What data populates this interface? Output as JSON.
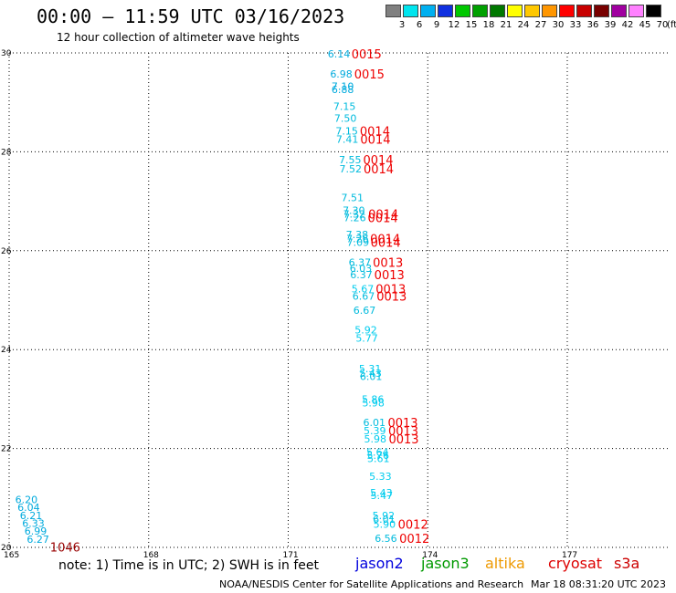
{
  "header": {
    "title": "00:00 – 11:59 UTC 03/16/2023",
    "subtitle": "12 hour collection of altimeter wave heights"
  },
  "colorbar": {
    "labels": [
      "3",
      "6",
      "9",
      "12",
      "15",
      "18",
      "21",
      "24",
      "27",
      "30",
      "33",
      "36",
      "39",
      "42",
      "45",
      "70"
    ],
    "unit": "(ft)",
    "colors": [
      "#808080",
      "#00e5ee",
      "#00b0f0",
      "#1030e0",
      "#00c800",
      "#00a000",
      "#007800",
      "#ffff00",
      "#ffc800",
      "#ff9600",
      "#ff0000",
      "#c80000",
      "#780000",
      "#a000a0",
      "#ff80ff",
      "#000000"
    ]
  },
  "map": {
    "lat_ticks": [
      "30",
      "28",
      "26",
      "24",
      "22",
      "20"
    ],
    "lon_ticks": [
      "165",
      "168",
      "171",
      "174",
      "177"
    ],
    "lat_range": [
      20,
      30
    ],
    "lon_range": [
      165,
      179.2
    ],
    "grid": "dotted",
    "swh_points": [
      {
        "lon": 171.85,
        "lat": 29.98,
        "label": "6.14",
        "color": "#00aadd"
      },
      {
        "lon": 171.9,
        "lat": 29.58,
        "label": "6.98",
        "color": "#00aadd"
      },
      {
        "lon": 171.93,
        "lat": 29.33,
        "label": "7.10",
        "color": "#00aadd"
      },
      {
        "lon": 171.93,
        "lat": 29.26,
        "label": "6.88",
        "color": "#00aadd"
      },
      {
        "lon": 171.97,
        "lat": 28.92,
        "label": "7.15",
        "color": "#00bbdd"
      },
      {
        "lon": 171.99,
        "lat": 28.68,
        "label": "7.50",
        "color": "#00bbdd"
      },
      {
        "lon": 172.02,
        "lat": 28.42,
        "label": "7.15",
        "color": "#00bbdd"
      },
      {
        "lon": 172.03,
        "lat": 28.26,
        "label": "7.41",
        "color": "#00bbdd"
      },
      {
        "lon": 172.09,
        "lat": 27.84,
        "label": "7.55",
        "color": "#00bbdd"
      },
      {
        "lon": 172.1,
        "lat": 27.66,
        "label": "7.52",
        "color": "#00bbdd"
      },
      {
        "lon": 172.14,
        "lat": 27.08,
        "label": "7.51",
        "color": "#00bbdd"
      },
      {
        "lon": 172.17,
        "lat": 26.82,
        "label": "7.30",
        "color": "#00bbdd"
      },
      {
        "lon": 172.18,
        "lat": 26.74,
        "label": "7.32",
        "color": "#00bbdd"
      },
      {
        "lon": 172.19,
        "lat": 26.67,
        "label": "7.26",
        "color": "#00bbdd"
      },
      {
        "lon": 172.24,
        "lat": 26.33,
        "label": "7.38",
        "color": "#00bbdd"
      },
      {
        "lon": 172.25,
        "lat": 26.25,
        "label": "7.26",
        "color": "#00bbdd"
      },
      {
        "lon": 172.26,
        "lat": 26.17,
        "label": "7.09",
        "color": "#00bbdd"
      },
      {
        "lon": 172.3,
        "lat": 25.77,
        "label": "6.37",
        "color": "#00bbdd"
      },
      {
        "lon": 172.32,
        "lat": 25.65,
        "label": "6.03",
        "color": "#00bbdd"
      },
      {
        "lon": 172.33,
        "lat": 25.52,
        "label": "6.37",
        "color": "#00bbdd"
      },
      {
        "lon": 172.36,
        "lat": 25.23,
        "label": "5.67",
        "color": "#00ccee"
      },
      {
        "lon": 172.38,
        "lat": 25.08,
        "label": "6.67",
        "color": "#00bbdd"
      },
      {
        "lon": 172.4,
        "lat": 24.8,
        "label": "6.67",
        "color": "#00bbdd"
      },
      {
        "lon": 172.43,
        "lat": 24.4,
        "label": "5.92",
        "color": "#00ccee"
      },
      {
        "lon": 172.45,
        "lat": 24.23,
        "label": "5.77",
        "color": "#00ccee"
      },
      {
        "lon": 172.52,
        "lat": 23.62,
        "label": "5.31",
        "color": "#00ccee"
      },
      {
        "lon": 172.53,
        "lat": 23.52,
        "label": "5.43",
        "color": "#00ccee"
      },
      {
        "lon": 172.54,
        "lat": 23.46,
        "label": "6.01",
        "color": "#00bbdd"
      },
      {
        "lon": 172.58,
        "lat": 23.0,
        "label": "5.86",
        "color": "#00ccee"
      },
      {
        "lon": 172.59,
        "lat": 22.92,
        "label": "5.98",
        "color": "#00ccee"
      },
      {
        "lon": 172.61,
        "lat": 22.53,
        "label": "6.01",
        "color": "#00bbdd"
      },
      {
        "lon": 172.62,
        "lat": 22.36,
        "label": "5.39",
        "color": "#00ccee"
      },
      {
        "lon": 172.63,
        "lat": 22.2,
        "label": "5.98",
        "color": "#00ccee"
      },
      {
        "lon": 172.68,
        "lat": 21.93,
        "label": "5.64",
        "color": "#00ccee"
      },
      {
        "lon": 172.69,
        "lat": 21.86,
        "label": "5.76",
        "color": "#00ccee"
      },
      {
        "lon": 172.7,
        "lat": 21.8,
        "label": "5.61",
        "color": "#00ccee"
      },
      {
        "lon": 172.74,
        "lat": 21.44,
        "label": "5.33",
        "color": "#00ccee"
      },
      {
        "lon": 172.76,
        "lat": 21.11,
        "label": "5.43",
        "color": "#00ccee"
      },
      {
        "lon": 172.77,
        "lat": 21.05,
        "label": "5.47",
        "color": "#00ccee"
      },
      {
        "lon": 172.81,
        "lat": 20.65,
        "label": "5.92",
        "color": "#00ccee"
      },
      {
        "lon": 172.82,
        "lat": 20.57,
        "label": "6.01",
        "color": "#00bbdd"
      },
      {
        "lon": 172.83,
        "lat": 20.47,
        "label": "5.90",
        "color": "#00ccee"
      },
      {
        "lon": 172.86,
        "lat": 20.18,
        "label": "6.56",
        "color": "#00bbdd"
      },
      {
        "lon": 165.13,
        "lat": 20.97,
        "label": "6.20",
        "color": "#00aadd"
      },
      {
        "lon": 165.18,
        "lat": 20.81,
        "label": "6.04",
        "color": "#00aadd"
      },
      {
        "lon": 165.23,
        "lat": 20.65,
        "label": "6.21",
        "color": "#00aadd"
      },
      {
        "lon": 165.28,
        "lat": 20.49,
        "label": "6.33",
        "color": "#00aadd"
      },
      {
        "lon": 165.33,
        "lat": 20.33,
        "label": "6.99",
        "color": "#00aadd"
      },
      {
        "lon": 165.38,
        "lat": 20.17,
        "label": "6.27",
        "color": "#00aadd"
      }
    ],
    "time_labels": [
      {
        "lon": 172.36,
        "lat": 29.98,
        "label": "0015",
        "color": "#ee0000"
      },
      {
        "lon": 172.42,
        "lat": 29.58,
        "label": "0015",
        "color": "#ee0000"
      },
      {
        "lon": 172.54,
        "lat": 28.42,
        "label": "0014",
        "color": "#ee0000"
      },
      {
        "lon": 172.55,
        "lat": 28.26,
        "label": "0014",
        "color": "#ee0000"
      },
      {
        "lon": 172.61,
        "lat": 27.84,
        "label": "0014",
        "color": "#ee0000"
      },
      {
        "lon": 172.62,
        "lat": 27.66,
        "label": "0014",
        "color": "#ee0000"
      },
      {
        "lon": 172.72,
        "lat": 26.74,
        "label": "0014",
        "color": "#ee0000"
      },
      {
        "lon": 172.71,
        "lat": 26.67,
        "label": "0014",
        "color": "#ee0000"
      },
      {
        "lon": 172.76,
        "lat": 26.25,
        "label": "0014",
        "color": "#ee0000"
      },
      {
        "lon": 172.77,
        "lat": 26.17,
        "label": "0014",
        "color": "#ee0000"
      },
      {
        "lon": 172.82,
        "lat": 25.77,
        "label": "0013",
        "color": "#ee0000"
      },
      {
        "lon": 172.85,
        "lat": 25.52,
        "label": "0013",
        "color": "#ee0000"
      },
      {
        "lon": 172.88,
        "lat": 25.23,
        "label": "0013",
        "color": "#ee0000"
      },
      {
        "lon": 172.9,
        "lat": 25.08,
        "label": "0013",
        "color": "#ee0000"
      },
      {
        "lon": 173.14,
        "lat": 22.53,
        "label": "0013",
        "color": "#ee0000"
      },
      {
        "lon": 173.15,
        "lat": 22.36,
        "label": "0013",
        "color": "#ee0000"
      },
      {
        "lon": 173.16,
        "lat": 22.2,
        "label": "0013",
        "color": "#ee0000"
      },
      {
        "lon": 173.36,
        "lat": 20.47,
        "label": "0012",
        "color": "#ee0000"
      },
      {
        "lon": 173.39,
        "lat": 20.18,
        "label": "0012",
        "color": "#ee0000"
      },
      {
        "lon": 165.88,
        "lat": 20.01,
        "label": "1046",
        "color": "#990000"
      }
    ]
  },
  "note": {
    "text": "note: 1) Time is in UTC; 2) SWH is in feet"
  },
  "satellites": [
    {
      "name": "jason2",
      "color": "#0000dd"
    },
    {
      "name": "jason3",
      "color": "#009900"
    },
    {
      "name": "altika",
      "color": "#ee9900"
    },
    {
      "name": "cryosat",
      "color": "#dd0000"
    },
    {
      "name": "s3a",
      "color": "#cc0000"
    }
  ],
  "footer": {
    "credit": "NOAA/NESDIS Center for Satellite Applications and Research",
    "timestamp": "Mar 18 08:31:20 UTC 2023"
  }
}
